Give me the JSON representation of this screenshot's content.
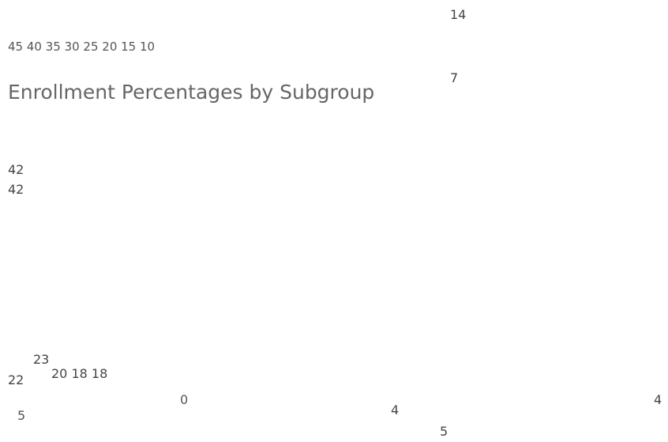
{
  "title": "Enrollment Percentages by Subgroup",
  "labels": [
    "14",
    "45 40 35 30 25 20 15 10",
    "7",
    "42",
    "42",
    "23",
    "22",
    "20 18 18",
    "0",
    "4",
    "4",
    "5",
    "5"
  ]
}
